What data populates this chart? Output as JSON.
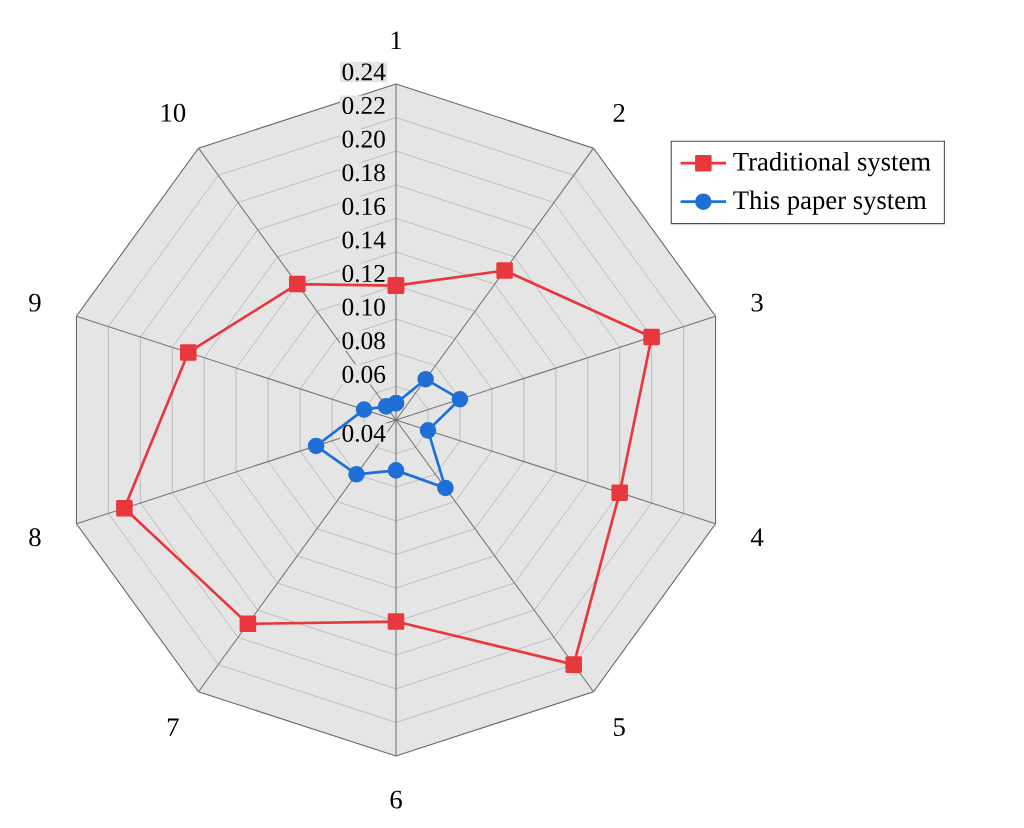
{
  "chart_data": {
    "type": "radar",
    "categories": [
      "1",
      "2",
      "3",
      "4",
      "5",
      "6",
      "7",
      "8",
      "9",
      "10"
    ],
    "series": [
      {
        "name": "Traditional system",
        "color": "#e8383d",
        "marker": "square",
        "values": [
          0.12,
          0.15,
          0.2,
          0.18,
          0.22,
          0.16,
          0.19,
          0.21,
          0.17,
          0.14
        ]
      },
      {
        "name": "This paper system",
        "color": "#1f6fd6",
        "marker": "circle",
        "values": [
          0.05,
          0.07,
          0.08,
          0.06,
          0.09,
          0.07,
          0.08,
          0.09,
          0.06,
          0.05
        ]
      }
    ],
    "ylim": [
      0.04,
      0.24
    ],
    "yticks": [
      0.04,
      0.06,
      0.08,
      {
        "value": 0.1,
        "label": "0.10"
      },
      0.12,
      0.14,
      0.16,
      0.18,
      {
        "value": 0.2,
        "label": "0.20"
      },
      0.22,
      0.24
    ],
    "legend": "top right"
  }
}
